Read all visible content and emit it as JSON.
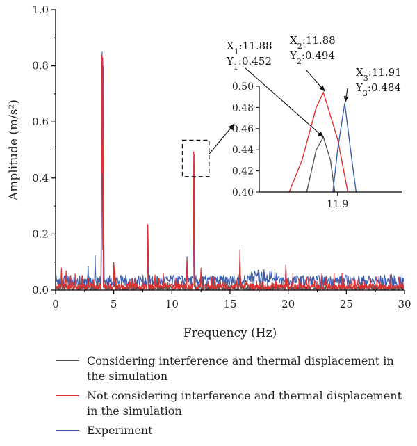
{
  "chart_data": {
    "type": "line",
    "xlabel": "Frequency (Hz)",
    "ylabel": "Amplitude (m/s²)",
    "xlim": [
      0,
      30
    ],
    "ylim": [
      0,
      1.0
    ],
    "x_ticks": [
      "0",
      "5",
      "10",
      "15",
      "20",
      "25",
      "30"
    ],
    "y_ticks": [
      "0.0",
      "0.2",
      "0.4",
      "0.6",
      "0.8",
      "1.0"
    ],
    "grid": false,
    "legend_position": "bottom",
    "series": [
      {
        "name": "Considering interference and thermal displacement in the simulation",
        "color": "#555555",
        "peaks": [
          [
            0.5,
            0.05
          ],
          [
            3.97,
            0.84
          ],
          [
            4.05,
            0.82
          ],
          [
            5.0,
            0.07
          ],
          [
            7.93,
            0.22
          ],
          [
            11.88,
            0.452
          ],
          [
            15.85,
            0.06
          ],
          [
            19.8,
            0.06
          ]
        ],
        "baseline": 0.005
      },
      {
        "name": "Not considering interference and thermal displacement in the simulation",
        "color": "#e03030",
        "peaks": [
          [
            0.5,
            0.08
          ],
          [
            0.9,
            0.07
          ],
          [
            3.97,
            0.84
          ],
          [
            4.05,
            0.83
          ],
          [
            5.0,
            0.1
          ],
          [
            5.1,
            0.09
          ],
          [
            7.93,
            0.235
          ],
          [
            11.3,
            0.11
          ],
          [
            11.88,
            0.494
          ],
          [
            12.5,
            0.08
          ],
          [
            15.85,
            0.14
          ],
          [
            19.8,
            0.09
          ]
        ],
        "baseline": 0.008
      },
      {
        "name": "Experiment",
        "color": "#3a5fb0",
        "peaks": [
          [
            2.8,
            0.085
          ],
          [
            3.4,
            0.125
          ],
          [
            4.0,
            0.85
          ],
          [
            4.1,
            0.8
          ],
          [
            7.95,
            0.21
          ],
          [
            11.3,
            0.12
          ],
          [
            11.91,
            0.484
          ],
          [
            15.85,
            0.145
          ],
          [
            19.8,
            0.09
          ]
        ],
        "baseline": 0.03,
        "noise_amplitude": 0.03,
        "noise_band": [
          [
            16.5,
            19.0,
            0.035
          ]
        ]
      }
    ],
    "zoom_box": {
      "x": [
        10.9,
        13.2
      ],
      "y": [
        0.405,
        0.535
      ]
    },
    "inset": {
      "xlim": [
        11.79,
        11.99
      ],
      "ylim": [
        0.4,
        0.5
      ],
      "x_ticks": [
        "11.9"
      ],
      "x_tick_values": [
        11.9
      ],
      "y_ticks": [
        "0.40",
        "0.42",
        "0.44",
        "0.46",
        "0.48",
        "0.50"
      ],
      "traces": [
        {
          "series": 0,
          "x": [
            11.85,
            11.87,
            11.88,
            11.89,
            11.9
          ],
          "y": [
            0.38,
            0.44,
            0.452,
            0.43,
            0.38
          ]
        },
        {
          "series": 1,
          "x": [
            11.82,
            11.85,
            11.87,
            11.88,
            11.9,
            11.92
          ],
          "y": [
            0.38,
            0.43,
            0.48,
            0.494,
            0.45,
            0.38
          ]
        },
        {
          "series": 2,
          "x": [
            11.89,
            11.9,
            11.91,
            11.92,
            11.93
          ],
          "y": [
            0.38,
            0.44,
            0.484,
            0.43,
            0.38
          ]
        }
      ]
    },
    "annotations": [
      {
        "id": "a1",
        "line1": "X",
        "sub1": "1",
        "val1": ":11.88",
        "line2": "Y",
        "sub2": "1",
        "val2": ":0.452",
        "point": [
          11.88,
          0.452
        ],
        "series": 0
      },
      {
        "id": "a2",
        "line1": "X",
        "sub1": "2",
        "val1": ":11.88",
        "line2": "Y",
        "sub2": "2",
        "val2": ":0.494",
        "point": [
          11.88,
          0.494
        ],
        "series": 1
      },
      {
        "id": "a3",
        "line1": "X",
        "sub1": "3",
        "val1": ":11.91",
        "line2": "Y",
        "sub2": "3",
        "val2": ":0.484",
        "point": [
          11.91,
          0.484
        ],
        "series": 2
      }
    ]
  }
}
